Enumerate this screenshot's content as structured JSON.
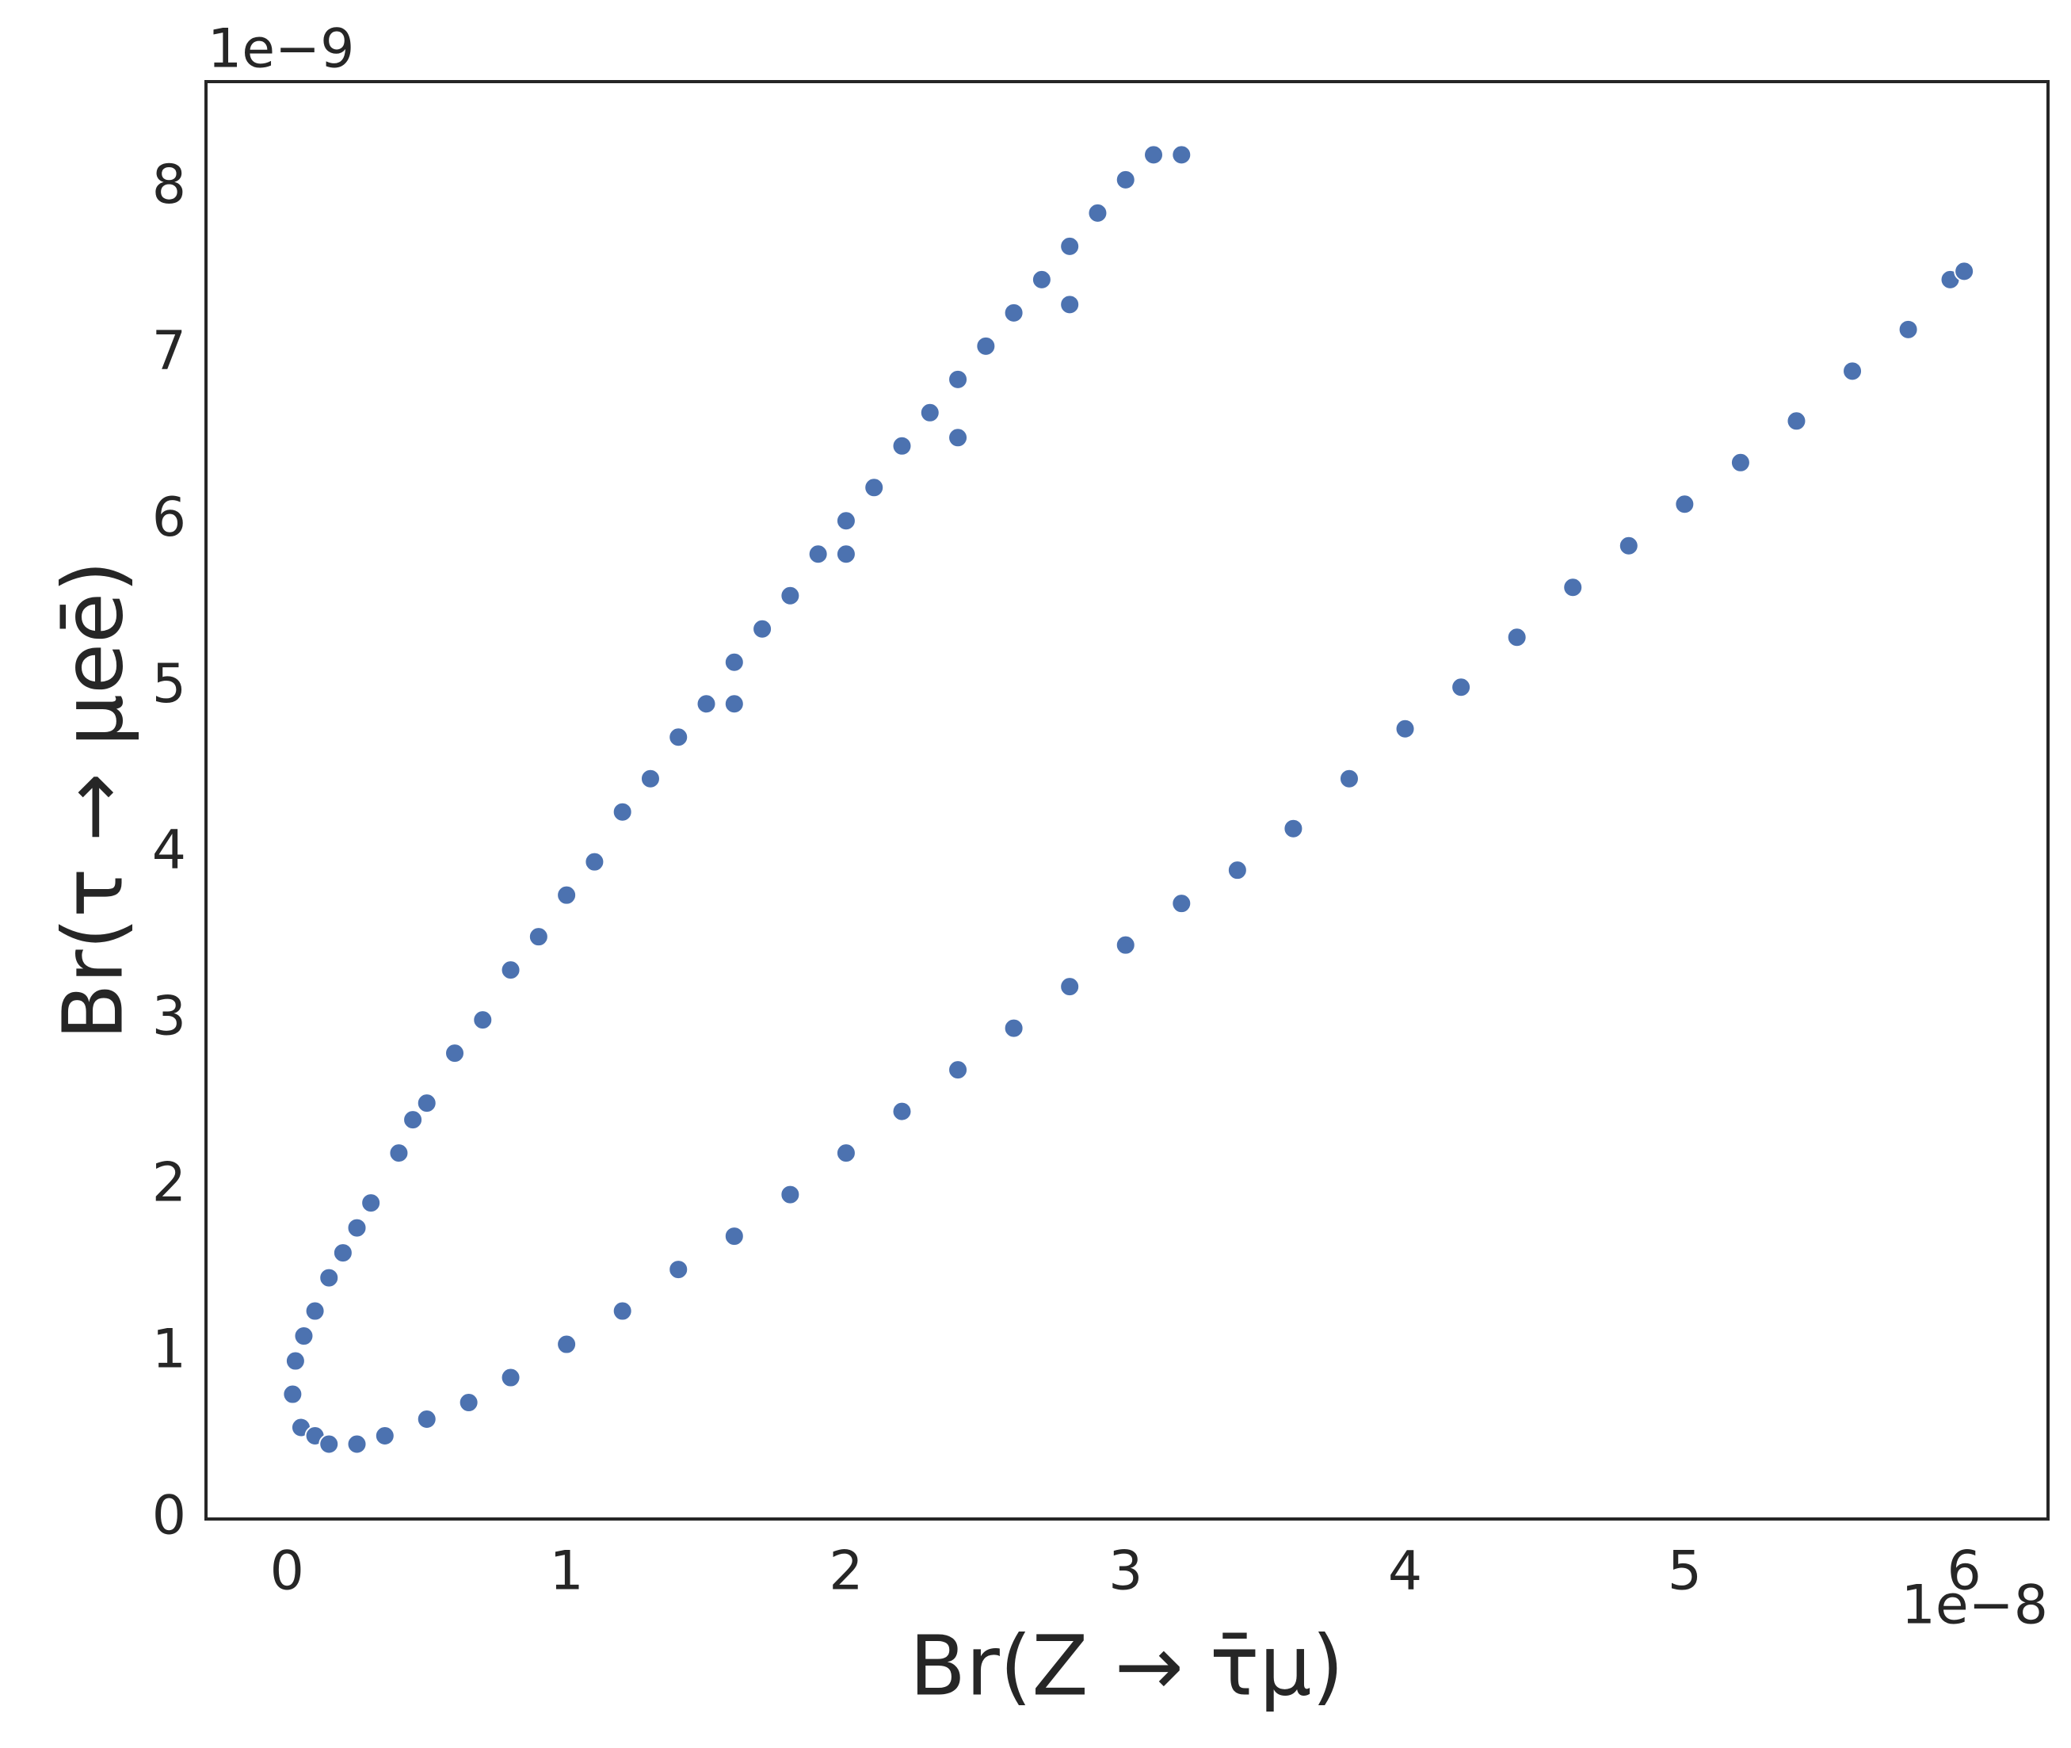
{
  "chart_data": {
    "type": "scatter",
    "x_label": "Br(Z → τ̄μ)",
    "y_label": "Br(τ → μeē)",
    "x_offset_text": "1e−8",
    "y_offset_text": "1e−9",
    "xlim": [
      -0.29,
      6.3
    ],
    "ylim": [
      0,
      8.64
    ],
    "xticks": [
      0,
      1,
      2,
      3,
      4,
      5,
      6
    ],
    "yticks": [
      0,
      1,
      2,
      3,
      4,
      5,
      6,
      7,
      8
    ],
    "grid": false,
    "series": [
      {
        "color": "#4c72b0",
        "x": [
          0.02,
          0.03,
          0.06,
          0.1,
          0.15,
          0.2,
          0.25,
          0.3,
          0.4,
          0.45,
          0.5,
          0.6,
          0.7,
          0.8,
          0.9,
          1.0,
          1.1,
          1.2,
          1.3,
          1.4,
          1.5,
          1.6,
          1.7,
          1.8,
          1.9,
          2.0,
          2.1,
          2.2,
          2.3,
          2.4,
          2.5,
          2.6,
          2.7,
          2.8,
          2.9,
          3.0,
          3.1,
          3.2,
          2.8,
          2.4,
          2.0,
          1.6,
          0.05,
          0.1,
          0.15,
          0.25,
          0.35,
          0.5,
          0.65,
          0.8,
          1.0,
          1.2,
          1.4,
          1.6,
          1.8,
          2.0,
          2.2,
          2.4,
          2.6,
          2.8,
          3.0,
          3.2,
          3.4,
          3.6,
          3.8,
          4.0,
          4.2,
          4.4,
          4.6,
          4.8,
          5.0,
          5.2,
          5.4,
          5.6,
          5.8,
          5.95,
          6.0
        ],
        "y": [
          0.75,
          0.95,
          1.1,
          1.25,
          1.45,
          1.6,
          1.75,
          1.9,
          2.2,
          2.4,
          2.5,
          2.8,
          3.0,
          3.3,
          3.5,
          3.75,
          3.95,
          4.25,
          4.45,
          4.7,
          4.9,
          5.15,
          5.35,
          5.55,
          5.8,
          6.0,
          6.2,
          6.45,
          6.65,
          6.85,
          7.05,
          7.25,
          7.45,
          7.65,
          7.85,
          8.05,
          8.2,
          8.2,
          7.3,
          6.5,
          5.8,
          4.9,
          0.55,
          0.5,
          0.45,
          0.45,
          0.5,
          0.6,
          0.7,
          0.85,
          1.05,
          1.25,
          1.5,
          1.7,
          1.95,
          2.2,
          2.45,
          2.7,
          2.95,
          3.2,
          3.45,
          3.7,
          3.9,
          4.15,
          4.45,
          4.75,
          5.0,
          5.3,
          5.6,
          5.85,
          6.1,
          6.35,
          6.6,
          6.9,
          7.15,
          7.45,
          7.5
        ]
      }
    ]
  }
}
